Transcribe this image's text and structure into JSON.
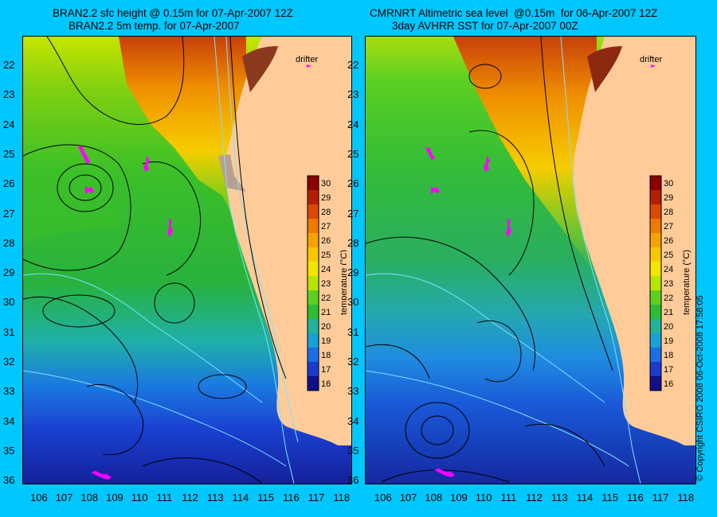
{
  "left_panel": {
    "title_line1": "BRAN2.2 sfc height @ 0.15m for 07-Apr-2007 12Z",
    "title_line2": "BRAN2.2 5m temp. for 07-Apr-2007",
    "drifter_label": "drifter"
  },
  "right_panel": {
    "title_line1": "CMRNRT Altimetric sea level  @0.15m  for 06-Apr-2007 12Z",
    "title_line2": "3day AVHRR SST for 07-Apr-2007 00Z",
    "drifter_label": "drifter"
  },
  "latitude_labels": [
    "22",
    "23",
    "24",
    "25",
    "26",
    "27",
    "28",
    "29",
    "30",
    "31",
    "32",
    "33",
    "34",
    "35",
    "36"
  ],
  "longitude_labels": [
    "106",
    "107",
    "108",
    "109",
    "110",
    "111",
    "112",
    "113",
    "114",
    "115",
    "116",
    "117",
    "118"
  ],
  "colorbar": {
    "title": "temperature (°C)",
    "ticks": [
      "30",
      "29",
      "28",
      "27",
      "26",
      "25",
      "24",
      "23",
      "22",
      "21",
      "20",
      "19",
      "18",
      "17",
      "16"
    ],
    "colors": [
      "#8b0000",
      "#b22000",
      "#d84a00",
      "#ee7a00",
      "#f5a300",
      "#f7c800",
      "#f2e600",
      "#b6e600",
      "#5ed020",
      "#2cbc36",
      "#20b49a",
      "#18a0d8",
      "#1a6ee8",
      "#1a3ad0",
      "#10108a"
    ]
  },
  "copyright": "© Copyright CSIRO 2008    06-Oct-2008 17:58:05",
  "colors": {
    "background": "#00c8ff",
    "land": "#ffcc99",
    "drifter": "#ff00ff",
    "contour": "#000000",
    "bathymetry": "#7fe0ff"
  }
}
